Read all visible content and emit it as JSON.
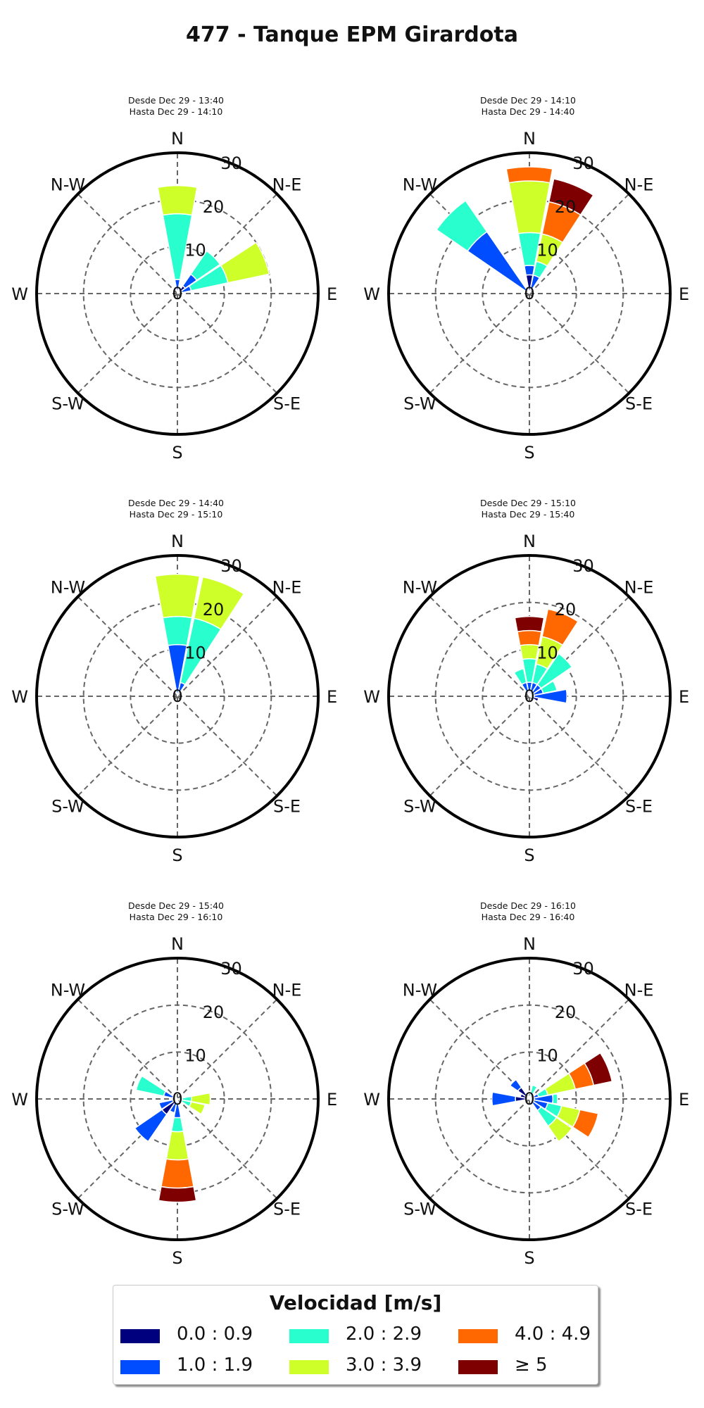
{
  "title": "477 - Tanque EPM Girardota",
  "directions": [
    "N",
    "N-E",
    "E",
    "S-E",
    "S",
    "S-W",
    "W",
    "N-W"
  ],
  "legend": {
    "title": "Velocidad [m/s]",
    "items": [
      {
        "label": "0.0 : 0.9",
        "color": "#00007f"
      },
      {
        "label": "1.0 : 1.9",
        "color": "#004cff"
      },
      {
        "label": "2.0 : 2.9",
        "color": "#29ffce"
      },
      {
        "label": "3.0 : 3.9",
        "color": "#ceff29"
      },
      {
        "label": "4.0 : 4.9",
        "color": "#ff6800"
      },
      {
        "label": "≥ 5",
        "color": "#7f0000"
      }
    ]
  },
  "panels": [
    {
      "line1": "Desde Dec 29 - 13:40",
      "line2": "Hasta Dec 29 - 14:10"
    },
    {
      "line1": "Desde Dec 29 - 14:10",
      "line2": "Hasta Dec 29 - 14:40"
    },
    {
      "line1": "Desde Dec 29 - 14:40",
      "line2": "Hasta Dec 29 - 15:10"
    },
    {
      "line1": "Desde Dec 29 - 15:10",
      "line2": "Hasta Dec 29 - 15:40"
    },
    {
      "line1": "Desde Dec 29 - 15:40",
      "line2": "Hasta Dec 29 - 16:10"
    },
    {
      "line1": "Desde Dec 29 - 16:10",
      "line2": "Hasta Dec 29 - 16:40"
    }
  ],
  "chart_data": [
    {
      "type": "windrose",
      "rmax": 30,
      "rticks": [
        0,
        10,
        20,
        30
      ],
      "speed_bins": [
        "0.0 : 0.9",
        "1.0 : 1.9",
        "2.0 : 2.9",
        "3.0 : 3.9",
        "4.0 : 4.9",
        "≥ 5"
      ],
      "sectors": [
        {
          "dir": 0,
          "values": [
            0,
            3,
            14,
            6,
            0,
            0
          ]
        },
        {
          "dir": 22.5,
          "values": [
            0,
            0,
            0,
            0,
            0,
            0
          ]
        },
        {
          "dir": 45,
          "values": [
            2,
            3,
            6,
            0,
            0,
            0
          ]
        },
        {
          "dir": 67.5,
          "values": [
            1,
            2,
            8,
            9,
            0,
            0
          ]
        },
        {
          "dir": 90,
          "values": [
            0,
            0,
            0,
            0,
            0,
            0
          ]
        }
      ]
    },
    {
      "type": "windrose",
      "rmax": 30,
      "rticks": [
        0,
        10,
        20,
        30
      ],
      "speed_bins": [
        "0.0 : 0.9",
        "1.0 : 1.9",
        "2.0 : 2.9",
        "3.0 : 3.9",
        "4.0 : 4.9",
        "≥ 5"
      ],
      "sectors": [
        {
          "dir": 0,
          "values": [
            4,
            2,
            7,
            11,
            3,
            0
          ]
        },
        {
          "dir": 22.5,
          "values": [
            1,
            3,
            3,
            6,
            7,
            5
          ]
        },
        {
          "dir": 315,
          "values": [
            1,
            15,
            8,
            0,
            0,
            0
          ]
        }
      ]
    },
    {
      "type": "windrose",
      "rmax": 30,
      "rticks": [
        0,
        10,
        20,
        30
      ],
      "speed_bins": [
        "0.0 : 0.9",
        "1.0 : 1.9",
        "2.0 : 2.9",
        "3.0 : 3.9",
        "4.0 : 4.9",
        "≥ 5"
      ],
      "sectors": [
        {
          "dir": 0,
          "values": [
            0,
            11,
            6,
            9,
            0,
            0
          ]
        },
        {
          "dir": 22.5,
          "values": [
            1,
            2,
            14,
            9,
            0,
            0
          ]
        }
      ]
    },
    {
      "type": "windrose",
      "rmax": 30,
      "rticks": [
        0,
        10,
        20,
        30
      ],
      "speed_bins": [
        "0.0 : 0.9",
        "1.0 : 1.9",
        "2.0 : 2.9",
        "3.0 : 3.9",
        "4.0 : 4.9",
        "≥ 5"
      ],
      "sectors": [
        {
          "dir": 337.5,
          "values": [
            1,
            2,
            3,
            0,
            0,
            0
          ]
        },
        {
          "dir": 0,
          "values": [
            1,
            2,
            5,
            3,
            3,
            3
          ]
        },
        {
          "dir": 22.5,
          "values": [
            1,
            2,
            4,
            6,
            6,
            0
          ]
        },
        {
          "dir": 45,
          "values": [
            1,
            2,
            8,
            0,
            0,
            0
          ]
        },
        {
          "dir": 67.5,
          "values": [
            1,
            2,
            3,
            0,
            0,
            0
          ]
        },
        {
          "dir": 90,
          "values": [
            1,
            7,
            0,
            0,
            0,
            0
          ]
        },
        {
          "dir": 112.5,
          "values": [
            2,
            0,
            0,
            0,
            0,
            0
          ]
        }
      ]
    },
    {
      "type": "windrose",
      "rmax": 30,
      "rticks": [
        0,
        10,
        20,
        30
      ],
      "speed_bins": [
        "0.0 : 0.9",
        "1.0 : 1.9",
        "2.0 : 2.9",
        "3.0 : 3.9",
        "4.0 : 4.9",
        "≥ 5"
      ],
      "sectors": [
        {
          "dir": 180,
          "values": [
            1,
            3,
            3,
            6,
            6,
            3
          ]
        },
        {
          "dir": 202.5,
          "values": [
            0,
            3,
            0,
            0,
            0,
            0
          ]
        },
        {
          "dir": 225,
          "values": [
            4,
            7,
            0,
            0,
            0,
            0
          ]
        },
        {
          "dir": 247.5,
          "values": [
            1,
            3,
            0,
            0,
            0,
            0
          ]
        },
        {
          "dir": 292.5,
          "values": [
            1,
            2,
            6,
            0,
            0,
            0
          ]
        },
        {
          "dir": 315,
          "values": [
            0,
            0,
            1,
            0,
            0,
            0
          ]
        },
        {
          "dir": 112.5,
          "values": [
            1,
            0,
            2,
            3,
            0,
            0
          ]
        },
        {
          "dir": 135,
          "values": [
            0,
            0,
            0,
            0,
            0,
            0
          ]
        },
        {
          "dir": 157.5,
          "values": [
            0,
            0,
            0,
            0,
            0,
            0
          ]
        },
        {
          "dir": 90,
          "values": [
            1,
            0,
            2,
            4,
            0,
            0
          ]
        }
      ]
    },
    {
      "type": "windrose",
      "rmax": 30,
      "rticks": [
        0,
        10,
        20,
        30
      ],
      "speed_bins": [
        "0.0 : 0.9",
        "1.0 : 1.9",
        "2.0 : 2.9",
        "3.0 : 3.9",
        "4.0 : 4.9",
        "≥ 5"
      ],
      "sectors": [
        {
          "dir": 270,
          "values": [
            3,
            5,
            0,
            0,
            0,
            0
          ]
        },
        {
          "dir": 292.5,
          "values": [
            2,
            0,
            0,
            0,
            0,
            0
          ]
        },
        {
          "dir": 315,
          "values": [
            3,
            2,
            0,
            0,
            0,
            0
          ]
        },
        {
          "dir": 337.5,
          "values": [
            1,
            0,
            0,
            0,
            0,
            0
          ]
        },
        {
          "dir": 22.5,
          "values": [
            0,
            0,
            3,
            0,
            0,
            0
          ]
        },
        {
          "dir": 67.5,
          "values": [
            1,
            1,
            2,
            6,
            4,
            4
          ]
        },
        {
          "dir": 90,
          "values": [
            1,
            4,
            1,
            0,
            0,
            0
          ]
        },
        {
          "dir": 112.5,
          "values": [
            1,
            3,
            3,
            4,
            4,
            0
          ]
        },
        {
          "dir": 135,
          "values": [
            1,
            2,
            4,
            4,
            0,
            0
          ]
        },
        {
          "dir": 157.5,
          "values": [
            0,
            0,
            0,
            0,
            0,
            0
          ]
        },
        {
          "dir": 202.5,
          "values": [
            0,
            0,
            0,
            0,
            0,
            0
          ]
        },
        {
          "dir": 247.5,
          "values": [
            0,
            0,
            0,
            0,
            0,
            0
          ]
        },
        {
          "dir": 112.5,
          "values": [
            0,
            0,
            0,
            0,
            0,
            0
          ]
        },
        {
          "dir": 135,
          "values": [
            0,
            0,
            0,
            0,
            0,
            0
          ]
        },
        {
          "dir": 100,
          "values": [
            0,
            0,
            0,
            0,
            0,
            0
          ]
        },
        {
          "dir": 146,
          "values": [
            0,
            0,
            0,
            0,
            0,
            0
          ]
        },
        {
          "dir": 168.75,
          "values": [
            0,
            0,
            0,
            0,
            0,
            0
          ]
        },
        {
          "dir": 112.5,
          "values": [
            0,
            0,
            0,
            0,
            0,
            0
          ]
        },
        {
          "dir": 157.5,
          "values": [
            0,
            0,
            0,
            0,
            0,
            0
          ]
        },
        {
          "dir": 123.75,
          "values": [
            0,
            0,
            0,
            0,
            0,
            0
          ]
        },
        {
          "dir": 112.5,
          "values": [
            0,
            0,
            0,
            0,
            0,
            0
          ]
        },
        {
          "dir": 112.5,
          "values": [
            0,
            0,
            0,
            0,
            0,
            0
          ]
        },
        {
          "dir": 112.5,
          "values": [
            0,
            0,
            0,
            0,
            0,
            0
          ]
        }
      ]
    }
  ]
}
